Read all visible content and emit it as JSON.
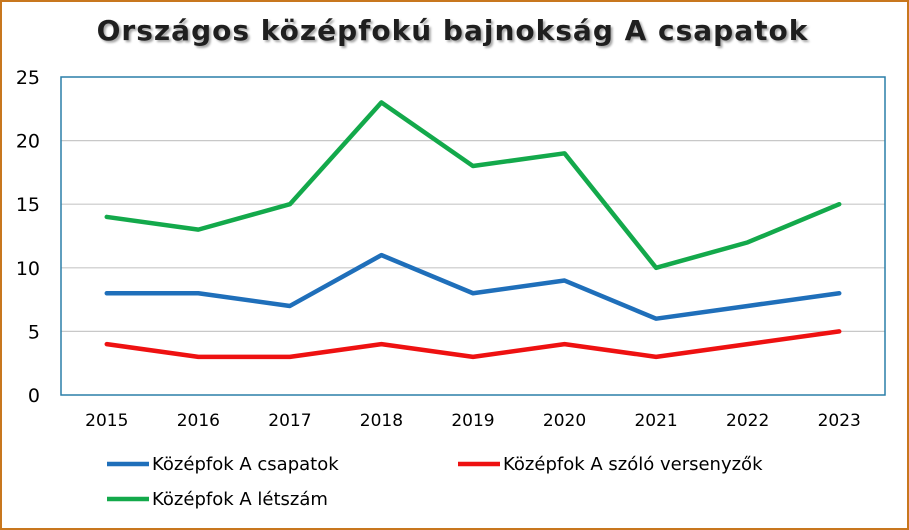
{
  "chart_data": {
    "type": "line",
    "title": "Országos középfokú bajnokság A csapatok",
    "xlabel": "",
    "ylabel": "",
    "x": [
      "2015",
      "2016",
      "2017",
      "2018",
      "2019",
      "2020",
      "2021",
      "2022",
      "2023"
    ],
    "ylim": [
      0,
      25
    ],
    "yticks": [
      "0",
      "5",
      "10",
      "15",
      "20",
      "25"
    ],
    "grid": true,
    "legend_position": "bottom",
    "series": [
      {
        "name": "Középfok A csapatok",
        "color": "#1f6fba",
        "values": [
          8,
          8,
          7,
          11,
          8,
          9,
          6,
          7,
          8
        ]
      },
      {
        "name": "Középfok A szóló versenyzők",
        "color": "#ee1111",
        "values": [
          4,
          3,
          3,
          4,
          3,
          4,
          3,
          4,
          5
        ]
      },
      {
        "name": "Középfok A létszám",
        "color": "#13a94b",
        "values": [
          14,
          13,
          15,
          23,
          18,
          19,
          10,
          12,
          15
        ]
      }
    ],
    "colors": {
      "plot_border": "#2a7fa8",
      "grid": "#c8c8c8",
      "frame_border": "#c8771e"
    }
  }
}
